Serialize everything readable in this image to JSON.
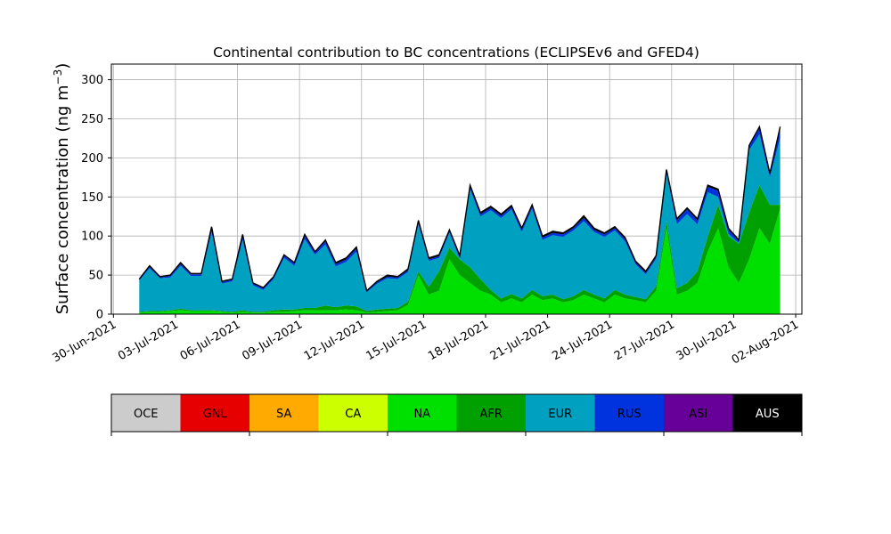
{
  "chart_data": {
    "type": "area",
    "title": "Continental contribution to BC concentrations (ECLIPSEv6 and GFED4)",
    "xlabel": "",
    "ylabel": "Surface concentration (ng m",
    "ylabel_sup": "−3",
    "ylabel_close": ")",
    "xlim": [
      "2021-06-30",
      "2021-08-02"
    ],
    "ylim": [
      0,
      320
    ],
    "y_ticks": [
      0,
      50,
      100,
      150,
      200,
      250,
      300
    ],
    "x_ticks": [
      "30-Jun-2021",
      "03-Jul-2021",
      "06-Jul-2021",
      "09-Jul-2021",
      "12-Jul-2021",
      "15-Jul-2021",
      "18-Jul-2021",
      "21-Jul-2021",
      "24-Jul-2021",
      "27-Jul-2021",
      "30-Jul-2021",
      "02-Aug-2021"
    ],
    "grid": true,
    "stacked": true,
    "x": [
      "2021-07-01",
      "2021-07-01",
      "2021-07-02",
      "2021-07-02",
      "2021-07-03",
      "2021-07-03",
      "2021-07-04",
      "2021-07-04",
      "2021-07-05",
      "2021-07-05",
      "2021-07-06",
      "2021-07-06",
      "2021-07-07",
      "2021-07-07",
      "2021-07-08",
      "2021-07-08",
      "2021-07-09",
      "2021-07-09",
      "2021-07-10",
      "2021-07-10",
      "2021-07-11",
      "2021-07-11",
      "2021-07-12",
      "2021-07-12",
      "2021-07-13",
      "2021-07-13",
      "2021-07-14",
      "2021-07-14",
      "2021-07-15",
      "2021-07-15",
      "2021-07-16",
      "2021-07-16",
      "2021-07-17",
      "2021-07-17",
      "2021-07-18",
      "2021-07-18",
      "2021-07-19",
      "2021-07-19",
      "2021-07-20",
      "2021-07-20",
      "2021-07-21",
      "2021-07-21",
      "2021-07-22",
      "2021-07-22",
      "2021-07-23",
      "2021-07-23",
      "2021-07-24",
      "2021-07-24",
      "2021-07-25",
      "2021-07-25",
      "2021-07-26",
      "2021-07-26",
      "2021-07-27",
      "2021-07-27",
      "2021-07-28",
      "2021-07-28",
      "2021-07-29",
      "2021-07-29",
      "2021-07-30",
      "2021-07-30",
      "2021-07-31",
      "2021-07-31",
      "2021-08-01"
    ],
    "totals": [
      45,
      62,
      48,
      50,
      66,
      52,
      52,
      112,
      42,
      45,
      102,
      40,
      34,
      48,
      76,
      66,
      102,
      80,
      95,
      66,
      72,
      86,
      30,
      42,
      50,
      48,
      58,
      120,
      72,
      76,
      108,
      75,
      165,
      130,
      138,
      128,
      140,
      110,
      140,
      100,
      106,
      104,
      112,
      126,
      110,
      104,
      112,
      98,
      68,
      55,
      75,
      185,
      122,
      136,
      122,
      165,
      160,
      110,
      95,
      216,
      240,
      180,
      240
    ],
    "series": [
      {
        "name": "OCE",
        "color": "#cccccc",
        "values": [
          0,
          0,
          0,
          0,
          0,
          0,
          0,
          0,
          0,
          0,
          0,
          0,
          0,
          0,
          0,
          0,
          0,
          0,
          0,
          0,
          0,
          0,
          0,
          0,
          0,
          0,
          0,
          0,
          0,
          0,
          0,
          0,
          0,
          0,
          0,
          0,
          0,
          0,
          0,
          0,
          0,
          0,
          0,
          0,
          0,
          0,
          0,
          0,
          0,
          0,
          0,
          0,
          0,
          0,
          0,
          0,
          0,
          0,
          0,
          0,
          0,
          0,
          0
        ]
      },
      {
        "name": "GNL",
        "color": "#e60000",
        "values": [
          0,
          0,
          0,
          0,
          0,
          0,
          0,
          0,
          0,
          0,
          0,
          0,
          0,
          0,
          0,
          0,
          0,
          0,
          0,
          0,
          0,
          0,
          0,
          0,
          0,
          0,
          0,
          0,
          0,
          0,
          0,
          0,
          0,
          0,
          0,
          0,
          0,
          0,
          0,
          0,
          0,
          0,
          0,
          0,
          0,
          0,
          0,
          0,
          0,
          0,
          0,
          0,
          0,
          0,
          0,
          0,
          0,
          0,
          0,
          0,
          0,
          0,
          0
        ]
      },
      {
        "name": "SA",
        "color": "#ffaa00",
        "values": [
          0,
          0,
          0,
          0,
          0,
          0,
          0,
          0,
          0,
          0,
          0,
          0,
          0,
          0,
          0,
          0,
          0,
          0,
          0,
          0,
          0,
          0,
          0,
          0,
          0,
          0,
          0,
          0,
          0,
          0,
          0,
          0,
          0,
          0,
          0,
          0,
          0,
          0,
          0,
          0,
          0,
          0,
          0,
          0,
          0,
          0,
          0,
          0,
          0,
          0,
          0,
          0,
          0,
          0,
          0,
          0,
          0,
          0,
          0,
          0,
          0,
          0,
          0
        ]
      },
      {
        "name": "CA",
        "color": "#ccff00",
        "values": [
          0,
          0,
          0,
          0,
          0,
          0,
          0,
          0,
          0,
          0,
          0,
          0,
          0,
          0,
          0,
          0,
          0,
          0,
          0,
          0,
          0,
          0,
          0,
          0,
          0,
          0,
          0,
          0,
          0,
          0,
          0,
          0,
          0,
          0,
          0,
          0,
          0,
          0,
          0,
          0,
          0,
          0,
          0,
          0,
          0,
          0,
          0,
          0,
          0,
          0,
          0,
          0,
          0,
          0,
          0,
          0,
          0,
          0,
          0,
          0,
          0,
          0,
          0
        ]
      },
      {
        "name": "NA",
        "color": "#00e000",
        "values": [
          2,
          3,
          3,
          4,
          5,
          4,
          4,
          4,
          3,
          2,
          3,
          2,
          2,
          3,
          3,
          4,
          5,
          5,
          5,
          5,
          6,
          5,
          2,
          3,
          4,
          5,
          12,
          50,
          25,
          30,
          70,
          50,
          40,
          30,
          25,
          15,
          20,
          15,
          25,
          18,
          20,
          15,
          18,
          25,
          20,
          15,
          25,
          20,
          18,
          15,
          30,
          110,
          25,
          30,
          40,
          80,
          110,
          60,
          40,
          70,
          110,
          90,
          135
        ]
      },
      {
        "name": "AFR",
        "color": "#00a000",
        "values": [
          1,
          1,
          1,
          1,
          2,
          1,
          1,
          1,
          1,
          1,
          2,
          1,
          1,
          2,
          3,
          2,
          3,
          3,
          6,
          4,
          5,
          5,
          2,
          3,
          3,
          3,
          4,
          5,
          10,
          25,
          15,
          20,
          20,
          15,
          6,
          5,
          6,
          5,
          6,
          5,
          5,
          4,
          5,
          6,
          5,
          5,
          6,
          5,
          4,
          4,
          6,
          10,
          8,
          10,
          15,
          20,
          30,
          40,
          50,
          60,
          55,
          50,
          5
        ]
      },
      {
        "name": "EUR",
        "color": "#00a0c0",
        "values": [
          40,
          55,
          42,
          42,
          55,
          44,
          44,
          100,
          35,
          39,
          90,
          34,
          28,
          40,
          66,
          56,
          88,
          68,
          78,
          52,
          56,
          70,
          24,
          33,
          39,
          37,
          38,
          60,
          33,
          17,
          19,
          1,
          100,
          80,
          102,
          103,
          108,
          85,
          104,
          72,
          76,
          80,
          84,
          88,
          80,
          79,
          76,
          68,
          42,
          32,
          35,
          60,
          82,
          88,
          60,
          56,
          10,
          3,
          1,
          80,
          65,
          35,
          85
        ]
      },
      {
        "name": "RUS",
        "color": "#0033dd",
        "values": [
          1,
          2,
          1,
          2,
          2,
          2,
          2,
          4,
          2,
          2,
          4,
          2,
          2,
          2,
          3,
          3,
          4,
          3,
          4,
          3,
          3,
          4,
          1,
          2,
          2,
          2,
          2,
          3,
          2,
          2,
          2,
          2,
          3,
          3,
          3,
          3,
          3,
          3,
          3,
          3,
          3,
          3,
          3,
          4,
          3,
          3,
          3,
          3,
          2,
          2,
          2,
          3,
          5,
          6,
          5,
          7,
          8,
          5,
          3,
          5,
          8,
          4,
          13
        ]
      },
      {
        "name": "ASI",
        "color": "#660099",
        "values": [
          0,
          0,
          0,
          0,
          0,
          0,
          0,
          0,
          0,
          0,
          0,
          0,
          0,
          0,
          0,
          0,
          0,
          0,
          0,
          0,
          0,
          0,
          0,
          0,
          0,
          0,
          0,
          0,
          0,
          0,
          0,
          0,
          0,
          0,
          0,
          0,
          0,
          0,
          0,
          0,
          0,
          0,
          0,
          0,
          0,
          0,
          0,
          0,
          0,
          0,
          0,
          0,
          0,
          0,
          0,
          0,
          0,
          0,
          0,
          0,
          0,
          0,
          0
        ]
      },
      {
        "name": "AUS",
        "color": "#000000",
        "values": [
          1,
          1,
          1,
          1,
          2,
          1,
          1,
          3,
          1,
          1,
          3,
          1,
          1,
          1,
          1,
          1,
          2,
          1,
          2,
          2,
          2,
          2,
          1,
          1,
          2,
          1,
          2,
          2,
          2,
          2,
          2,
          2,
          2,
          2,
          2,
          2,
          2,
          2,
          2,
          2,
          2,
          2,
          2,
          3,
          2,
          2,
          2,
          2,
          2,
          2,
          2,
          2,
          2,
          2,
          2,
          2,
          2,
          2,
          1,
          1,
          2,
          1,
          2
        ]
      }
    ]
  },
  "legend": {
    "entries": [
      "OCE",
      "GNL",
      "SA",
      "CA",
      "NA",
      "AFR",
      "EUR",
      "RUS",
      "ASI",
      "AUS"
    ]
  }
}
